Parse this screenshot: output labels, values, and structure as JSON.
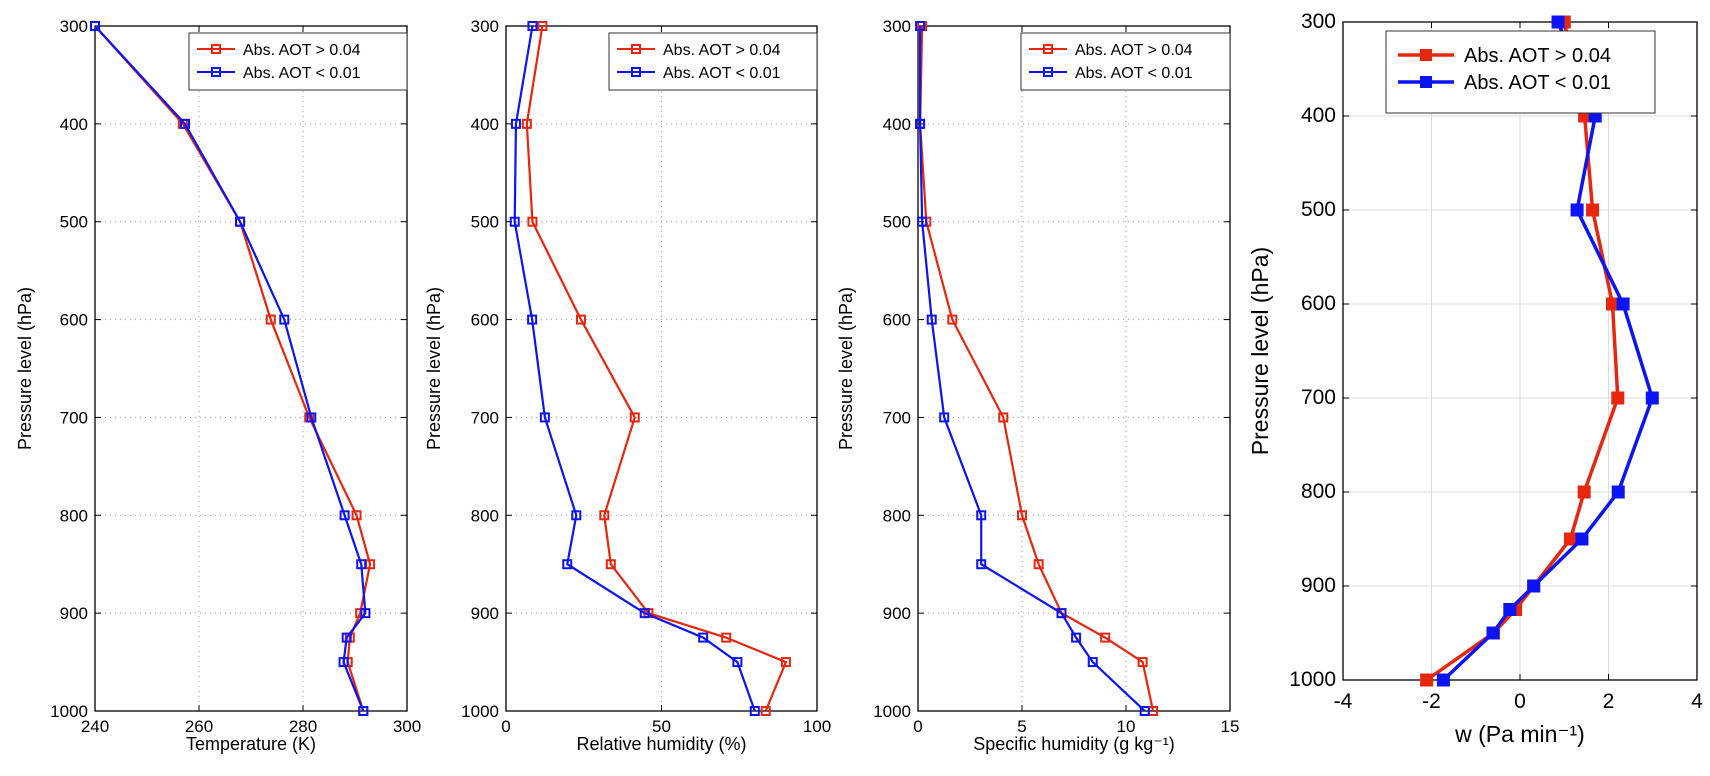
{
  "chart_data": [
    {
      "type": "line",
      "xlabel": "Temperature (K)",
      "ylabel": "Pressure level (hPa)",
      "xlim": [
        240,
        300
      ],
      "ylim": [
        300,
        1000
      ],
      "y_reversed": true,
      "xticks": [
        240,
        260,
        280,
        300
      ],
      "yticks": [
        300,
        400,
        500,
        600,
        700,
        800,
        900,
        1000
      ],
      "grid": "dotted",
      "legend": "top-right",
      "y": [
        300,
        400,
        500,
        600,
        700,
        800,
        850,
        900,
        925,
        950,
        1000
      ],
      "series": [
        {
          "name": "Abs. AOT > 0.04",
          "color": "#e8260e",
          "values": [
            240,
            256.9,
            267.9,
            273.8,
            281.2,
            290.3,
            292.9,
            291.0,
            289.0,
            288.6,
            291.6
          ]
        },
        {
          "name": "Abs. AOT < 0.01",
          "color": "#0a14f5",
          "values": [
            240,
            257.3,
            267.9,
            276.4,
            281.6,
            288.0,
            291.2,
            292.0,
            288.4,
            287.8,
            291.6
          ]
        }
      ]
    },
    {
      "type": "line",
      "xlabel": "Relative humidity (%)",
      "ylabel": "Pressure level (hPa)",
      "xlim": [
        0,
        100
      ],
      "ylim": [
        300,
        1000
      ],
      "y_reversed": true,
      "xticks": [
        0,
        50,
        100
      ],
      "yticks": [
        300,
        400,
        500,
        600,
        700,
        800,
        900,
        1000
      ],
      "grid": "dotted",
      "legend": "top-right",
      "y": [
        300,
        400,
        500,
        600,
        700,
        800,
        850,
        900,
        925,
        950,
        1000
      ],
      "series": [
        {
          "name": "Abs. AOT > 0.04",
          "color": "#e8260e",
          "values": [
            11.7,
            6.7,
            8.5,
            24.1,
            41.4,
            31.6,
            33.7,
            45.8,
            70.8,
            90.0,
            83.5
          ]
        },
        {
          "name": "Abs. AOT < 0.01",
          "color": "#0a14f5",
          "values": [
            8.5,
            3.2,
            2.8,
            8.4,
            12.5,
            22.6,
            19.7,
            44.6,
            63.4,
            74.4,
            80.0
          ]
        }
      ]
    },
    {
      "type": "line",
      "xlabel": "Specific humidity (g kg⁻¹)",
      "ylabel": "Pressure level (hPa)",
      "xlim": [
        0,
        15
      ],
      "ylim": [
        300,
        1000
      ],
      "y_reversed": true,
      "xticks": [
        0,
        5,
        10,
        15
      ],
      "yticks": [
        300,
        400,
        500,
        600,
        700,
        800,
        900,
        1000
      ],
      "grid": "dotted",
      "legend": "top-right",
      "y": [
        300,
        400,
        500,
        600,
        700,
        800,
        850,
        900,
        925,
        950,
        1000
      ],
      "series": [
        {
          "name": "Abs. AOT > 0.04",
          "color": "#e8260e",
          "values": [
            0.2,
            0.1,
            0.4,
            1.65,
            4.1,
            5.0,
            5.8,
            6.9,
            9.0,
            10.8,
            11.3
          ]
        },
        {
          "name": "Abs. AOT < 0.01",
          "color": "#0a14f5",
          "values": [
            0.1,
            0.1,
            0.2,
            0.66,
            1.26,
            3.04,
            3.04,
            6.9,
            7.6,
            8.4,
            10.9
          ]
        }
      ]
    },
    {
      "type": "line",
      "xlabel": "w (Pa min⁻¹)",
      "ylabel": "Pressure level (hPa)",
      "xlim": [
        -4,
        4
      ],
      "ylim": [
        300,
        1000
      ],
      "y_reversed": true,
      "xticks": [
        -4,
        -2,
        0,
        2,
        4
      ],
      "yticks": [
        300,
        400,
        500,
        600,
        700,
        800,
        900,
        1000
      ],
      "grid": "solid",
      "legend": "top-right",
      "y": [
        300,
        400,
        500,
        600,
        700,
        800,
        850,
        900,
        925,
        950,
        1000
      ],
      "series": [
        {
          "name": "Abs. AOT > 0.04",
          "color": "#e8260e",
          "values": [
            1.0,
            1.46,
            1.64,
            2.09,
            2.21,
            1.45,
            1.14,
            0.31,
            -0.1,
            -0.6,
            -2.11
          ]
        },
        {
          "name": "Abs. AOT < 0.01",
          "color": "#0a14f5",
          "values": [
            0.86,
            1.7,
            1.29,
            2.33,
            2.99,
            2.22,
            1.4,
            0.31,
            -0.23,
            -0.61,
            -1.73
          ]
        }
      ]
    }
  ]
}
